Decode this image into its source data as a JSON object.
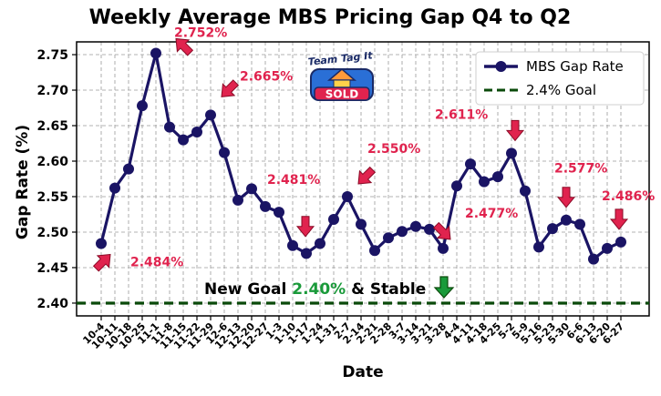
{
  "chart_data": {
    "type": "line",
    "title": "Weekly Average MBS Pricing Gap Q4 to Q2",
    "xlabel": "Date",
    "ylabel": "Gap Rate (%)",
    "ylim": [
      2.382,
      2.768
    ],
    "yticks": [
      "2.40",
      "2.45",
      "2.50",
      "2.55",
      "2.60",
      "2.65",
      "2.70",
      "2.75"
    ],
    "ytick_values": [
      2.4,
      2.45,
      2.5,
      2.55,
      2.6,
      2.65,
      2.7,
      2.75
    ],
    "grid": true,
    "legend_position": "top-right",
    "categories": [
      "10-4",
      "10-11",
      "10-18",
      "10-25",
      "11-1",
      "11-8",
      "11-15",
      "11-22",
      "11-29",
      "12-6",
      "12-13",
      "12-20",
      "12-27",
      "1-3",
      "1-10",
      "1-17",
      "1-24",
      "1-31",
      "2-7",
      "2-14",
      "2-21",
      "2-28",
      "3-7",
      "3-14",
      "3-21",
      "3-28",
      "4-4",
      "4-11",
      "4-18",
      "4-25",
      "5-2",
      "5-9",
      "5-16",
      "5-23",
      "5-30",
      "6-6",
      "6-13",
      "6-20",
      "6-27"
    ],
    "series": [
      {
        "name": "MBS Gap Rate",
        "color": "#1a1464",
        "values": [
          2.484,
          2.562,
          2.589,
          2.678,
          2.752,
          2.648,
          2.63,
          2.641,
          2.665,
          2.612,
          2.545,
          2.561,
          2.536,
          2.528,
          2.481,
          2.47,
          2.484,
          2.518,
          2.55,
          2.511,
          2.474,
          2.492,
          2.501,
          2.508,
          2.504,
          2.477,
          2.565,
          2.596,
          2.571,
          2.578,
          2.611,
          2.558,
          2.479,
          2.505,
          2.517,
          2.511,
          2.462,
          2.477,
          2.486
        ]
      }
    ],
    "goal": {
      "name": "2.4% Goal",
      "value": 2.4,
      "color": "#0a4a0a"
    },
    "annotations": [
      {
        "text": "2.752%",
        "color": "#e0234e"
      },
      {
        "text": "2.665%",
        "color": "#e0234e"
      },
      {
        "text": "2.484%",
        "color": "#e0234e"
      },
      {
        "text": "2.481%",
        "color": "#e0234e"
      },
      {
        "text": "2.550%",
        "color": "#e0234e"
      },
      {
        "text": "2.477%",
        "color": "#e0234e"
      },
      {
        "text": "2.611%",
        "color": "#e0234e"
      },
      {
        "text": "2.577%",
        "color": "#e0234e"
      },
      {
        "text": "2.486%",
        "color": "#e0234e"
      }
    ],
    "goal_note": {
      "prefix": "New Goal ",
      "value": "2.40%",
      "suffix": " & Stable",
      "value_color": "#1a9a3a"
    },
    "logo": {
      "top_text": "Team Tag It",
      "badge_text": "SOLD"
    }
  }
}
